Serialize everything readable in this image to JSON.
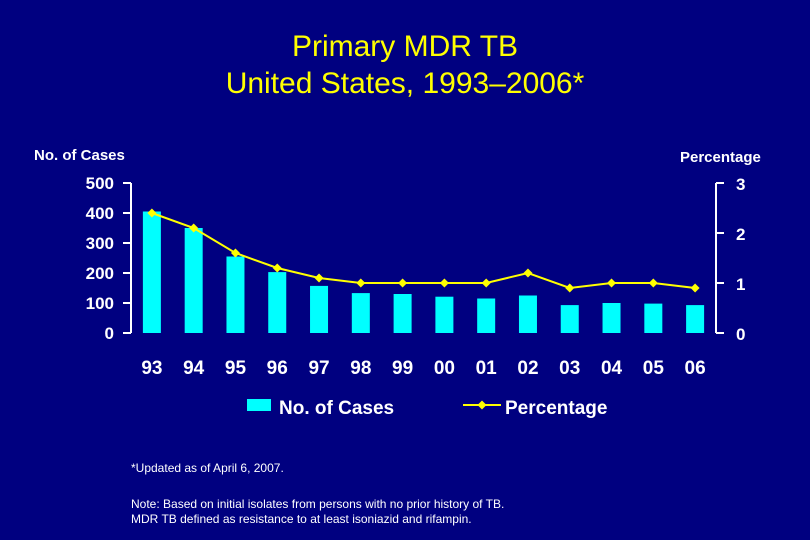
{
  "title_line1": "Primary MDR TB",
  "title_line2": "United States, 1993–2006*",
  "chart_data": {
    "type": "bar",
    "categories": [
      "93",
      "94",
      "95",
      "96",
      "97",
      "98",
      "99",
      "00",
      "01",
      "02",
      "03",
      "04",
      "05",
      "06"
    ],
    "series": [
      {
        "name": "No. of Cases",
        "type": "bar",
        "axis": "left",
        "values": [
          405,
          350,
          255,
          203,
          157,
          133,
          130,
          121,
          115,
          125,
          93,
          100,
          98,
          93
        ]
      },
      {
        "name": "Percentage",
        "type": "line",
        "axis": "right",
        "values": [
          2.4,
          2.1,
          1.6,
          1.3,
          1.1,
          1.0,
          1.0,
          1.0,
          1.0,
          1.2,
          0.9,
          1.0,
          1.0,
          0.9
        ]
      }
    ],
    "ylabel_left": "No. of Cases",
    "ylabel_right": "Percentage",
    "ylim_left": [
      0,
      500
    ],
    "ylim_right": [
      0,
      3
    ],
    "yticks_left": [
      "0",
      "100",
      "200",
      "300",
      "400",
      "500"
    ],
    "yticks_right": [
      "0",
      "1",
      "2",
      "3"
    ],
    "legend": {
      "placement": "bottom-center",
      "entries": [
        "No. of Cases",
        "Percentage"
      ]
    },
    "bar_color": "#00ffff",
    "line_color": "#ffff00",
    "axis_color": "#ffffff"
  },
  "notes": {
    "updated": "*Updated as of April 6, 2007.",
    "note_line1": "Note: Based on initial isolates from persons with no prior history of TB.",
    "note_line2": "MDR TB defined as resistance to at least isoniazid and rifampin."
  }
}
